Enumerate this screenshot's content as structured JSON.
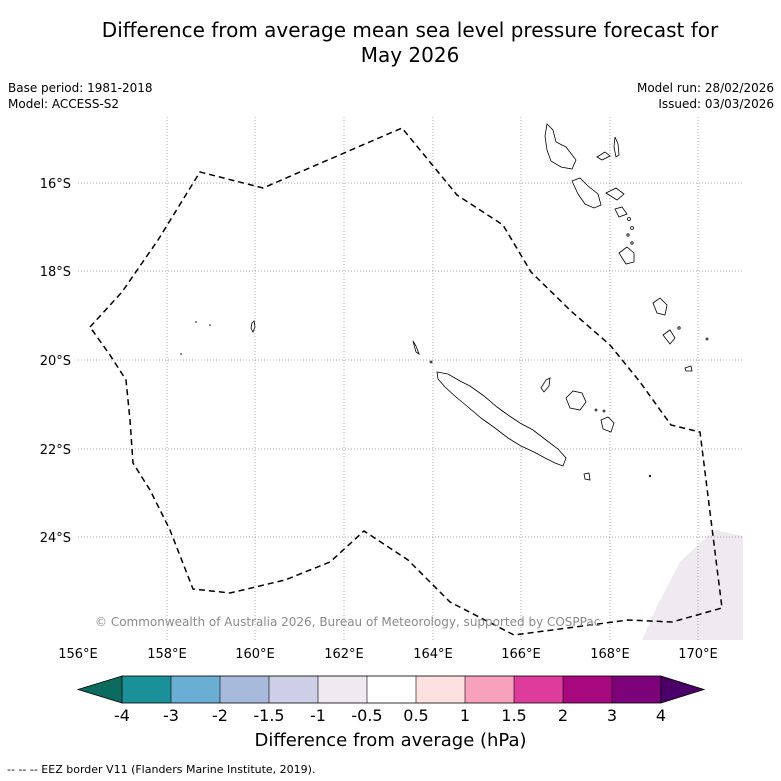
{
  "title": {
    "line1": "Difference from average mean sea level pressure forecast for",
    "line2": "May 2026"
  },
  "meta": {
    "base_period": "Base period: 1981-2018",
    "model": "Model: ACCESS-S2",
    "model_run": "Model run: 28/02/2026",
    "issued": "Issued: 03/03/2026"
  },
  "map": {
    "lat_labels": [
      "16°S",
      "18°S",
      "20°S",
      "22°S",
      "24°S"
    ],
    "lon_labels": [
      "156°E",
      "158°E",
      "160°E",
      "162°E",
      "164°E",
      "166°E",
      "168°E",
      "170°E"
    ],
    "copyright": "© Commonwealth of Australia 2026, Bureau of Meteorology, supported by COSPPac",
    "shaded_anomaly_class": "-1 to -0.5"
  },
  "colorbar": {
    "title": "Difference from average (hPa)",
    "tick_labels": [
      "-4",
      "-3",
      "-2",
      "-1.5",
      "-1",
      "-0.5",
      "0.5",
      "1",
      "1.5",
      "2",
      "3",
      "4"
    ],
    "colors": {
      "below": "#0a6b5e",
      "c1": "#1a9199",
      "c2": "#6aaed3",
      "c3": "#a8badc",
      "c4": "#cccfe5",
      "c5": "#eeeaf0",
      "c6": "#ffffff",
      "c7": "#fde0e0",
      "c8": "#f8a1bd",
      "c9": "#de3c9c",
      "c10": "#a8087e",
      "c11": "#7d027a",
      "above": "#4a0068"
    }
  },
  "footer": "--  --  -- EEZ border V11 (Flanders Marine Institute, 2019)."
}
